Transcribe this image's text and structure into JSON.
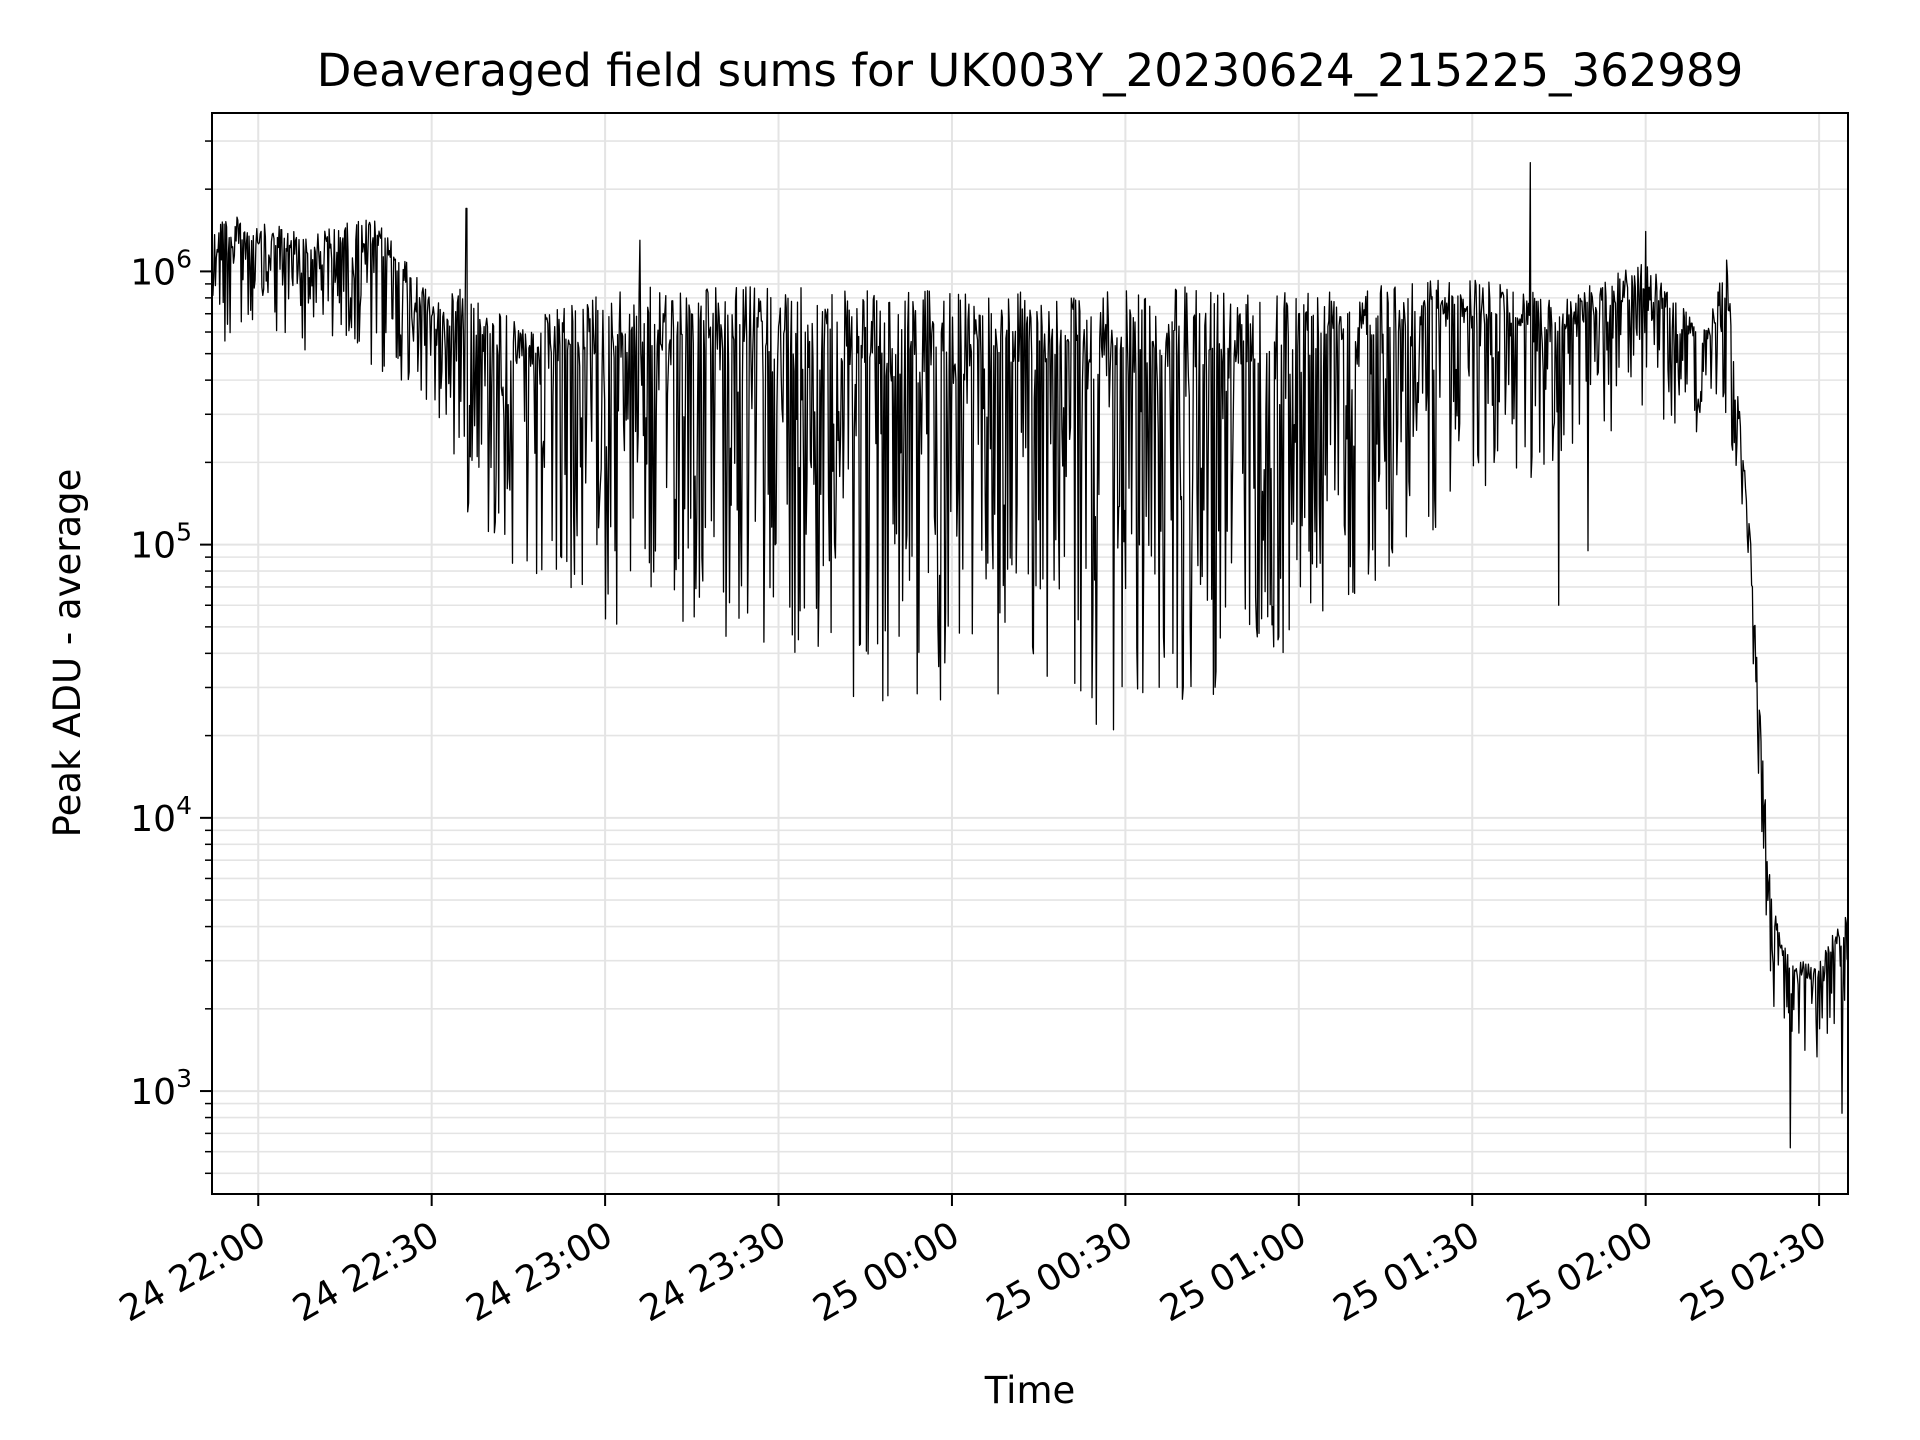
{
  "chart_data": {
    "type": "line",
    "title": "Deaveraged field sums for UK003Y_20230624_215225_362989",
    "xlabel": "Time",
    "ylabel": "Peak ADU - average",
    "yscale": "log",
    "ylim": [
      420,
      3800000
    ],
    "xlim": [
      "2023-06-24 21:52",
      "2023-06-25 02:35"
    ],
    "grid": true,
    "line_color": "#000000",
    "grid_color": "#e4e4e4",
    "x_ticks": [
      {
        "value": "2023-06-24 22:00",
        "label": "24 22:00"
      },
      {
        "value": "2023-06-24 22:30",
        "label": "24 22:30"
      },
      {
        "value": "2023-06-24 23:00",
        "label": "24 23:00"
      },
      {
        "value": "2023-06-24 23:30",
        "label": "24 23:30"
      },
      {
        "value": "2023-06-25 00:00",
        "label": "25 00:00"
      },
      {
        "value": "2023-06-25 00:30",
        "label": "25 00:30"
      },
      {
        "value": "2023-06-25 01:00",
        "label": "25 01:00"
      },
      {
        "value": "2023-06-25 01:30",
        "label": "25 01:30"
      },
      {
        "value": "2023-06-25 02:00",
        "label": "25 02:00"
      },
      {
        "value": "2023-06-25 02:30",
        "label": "25 02:30"
      }
    ],
    "y_ticks": [
      {
        "value": 1000,
        "base": "10",
        "exp": "3"
      },
      {
        "value": 10000,
        "base": "10",
        "exp": "4"
      },
      {
        "value": 100000,
        "base": "10",
        "exp": "5"
      },
      {
        "value": 1000000,
        "base": "10",
        "exp": "6"
      }
    ],
    "series": [
      {
        "envelope": [
          {
            "t": "2023-06-24 21:52",
            "low": 500000,
            "high": 1700000
          },
          {
            "t": "2023-06-24 22:00",
            "low": 550000,
            "high": 1500000
          },
          {
            "t": "2023-06-24 22:10",
            "low": 500000,
            "high": 1400000
          },
          {
            "t": "2023-06-24 22:20",
            "low": 430000,
            "high": 1600000
          },
          {
            "t": "2023-06-24 22:30",
            "low": 330000,
            "high": 800000
          },
          {
            "t": "2023-06-24 22:35",
            "low": 140000,
            "high": 900000
          },
          {
            "t": "2023-06-24 22:45",
            "low": 80000,
            "high": 650000
          },
          {
            "t": "2023-06-24 23:00",
            "low": 45000,
            "high": 850000
          },
          {
            "t": "2023-06-24 23:15",
            "low": 50000,
            "high": 900000
          },
          {
            "t": "2023-06-24 23:30",
            "low": 40000,
            "high": 880000
          },
          {
            "t": "2023-06-24 23:45",
            "low": 26000,
            "high": 850000
          },
          {
            "t": "2023-06-25 00:00",
            "low": 23000,
            "high": 850000
          },
          {
            "t": "2023-06-25 00:15",
            "low": 30000,
            "high": 850000
          },
          {
            "t": "2023-06-25 00:30",
            "low": 22000,
            "high": 850000
          },
          {
            "t": "2023-06-25 00:45",
            "low": 28000,
            "high": 900000
          },
          {
            "t": "2023-06-25 01:00",
            "low": 40000,
            "high": 880000
          },
          {
            "t": "2023-06-25 01:15",
            "low": 80000,
            "high": 950000
          },
          {
            "t": "2023-06-25 01:30",
            "low": 150000,
            "high": 950000
          },
          {
            "t": "2023-06-25 01:45",
            "low": 180000,
            "high": 800000
          },
          {
            "t": "2023-06-25 02:00",
            "low": 280000,
            "high": 1100000
          },
          {
            "t": "2023-06-25 02:10",
            "low": 250000,
            "high": 600000
          },
          {
            "t": "2023-06-25 02:14",
            "low": 250000,
            "high": 1100000
          },
          {
            "t": "2023-06-25 02:16",
            "low": 180000,
            "high": 350000
          },
          {
            "t": "2023-06-25 02:18",
            "low": 70000,
            "high": 120000
          },
          {
            "t": "2023-06-25 02:20",
            "low": 8000,
            "high": 20000
          },
          {
            "t": "2023-06-25 02:22",
            "low": 1500,
            "high": 5000
          },
          {
            "t": "2023-06-25 02:25",
            "low": 1500,
            "high": 3000
          },
          {
            "t": "2023-06-25 02:30",
            "low": 1300,
            "high": 3000
          },
          {
            "t": "2023-06-25 02:35",
            "low": 1800,
            "high": 5000
          }
        ],
        "spikes": [
          {
            "t": "2023-06-24 22:36",
            "value": 1700000
          },
          {
            "t": "2023-06-24 23:06",
            "value": 1300000
          },
          {
            "t": "2023-06-25 00:25",
            "value": 22000
          },
          {
            "t": "2023-06-25 00:28",
            "value": 21000
          },
          {
            "t": "2023-06-25 01:40",
            "value": 2500000
          },
          {
            "t": "2023-06-25 01:45",
            "value": 60000
          },
          {
            "t": "2023-06-25 01:50",
            "value": 95000
          },
          {
            "t": "2023-06-25 02:00",
            "value": 1400000
          },
          {
            "t": "2023-06-25 02:14",
            "value": 1100000
          },
          {
            "t": "2023-06-25 02:25",
            "value": 620
          },
          {
            "t": "2023-06-25 02:34",
            "value": 830
          }
        ]
      }
    ]
  }
}
